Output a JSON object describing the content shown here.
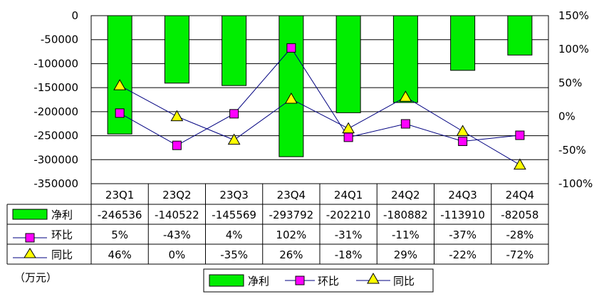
{
  "chart_data": {
    "type": "bar",
    "categories": [
      "23Q1",
      "23Q2",
      "23Q3",
      "23Q4",
      "24Q1",
      "24Q2",
      "24Q3",
      "24Q4"
    ],
    "series": [
      {
        "name": "净利",
        "type": "bar",
        "axis": "left",
        "color": "#00ee00",
        "values": [
          -246536,
          -140522,
          -145569,
          -293792,
          -202210,
          -180882,
          -113910,
          -82058
        ],
        "labels": [
          "-246536",
          "-140522",
          "-145569",
          "-293792",
          "-202210",
          "-180882",
          "-113910",
          "-82058"
        ]
      },
      {
        "name": "环比",
        "type": "line",
        "axis": "right",
        "marker": "square",
        "color": "#ff00ff",
        "values": [
          5,
          -43,
          4,
          102,
          -31,
          -11,
          -37,
          -28
        ],
        "labels": [
          "5%",
          "-43%",
          "4%",
          "102%",
          "-31%",
          "-11%",
          "-37%",
          "-28%"
        ]
      },
      {
        "name": "同比",
        "type": "line",
        "axis": "right",
        "marker": "triangle",
        "color": "#ffff00",
        "values": [
          46,
          0,
          -35,
          26,
          -18,
          29,
          -22,
          -72
        ],
        "labels": [
          "46%",
          "0%",
          "-35%",
          "26%",
          "-18%",
          "29%",
          "-22%",
          "-72%"
        ]
      }
    ],
    "y_left": {
      "min": -350000,
      "max": 0,
      "step": 50000,
      "ticks": [
        "0",
        "-50000",
        "-100000",
        "-150000",
        "-200000",
        "-250000",
        "-300000",
        "-350000"
      ]
    },
    "y_right": {
      "min": -100,
      "max": 150,
      "step": 50,
      "ticks": [
        "150%",
        "100%",
        "50%",
        "0%",
        "-50%",
        "-100%"
      ]
    },
    "unit": "（万元）",
    "grid": true,
    "legend_position": "bottom",
    "line_color": "#000080"
  }
}
